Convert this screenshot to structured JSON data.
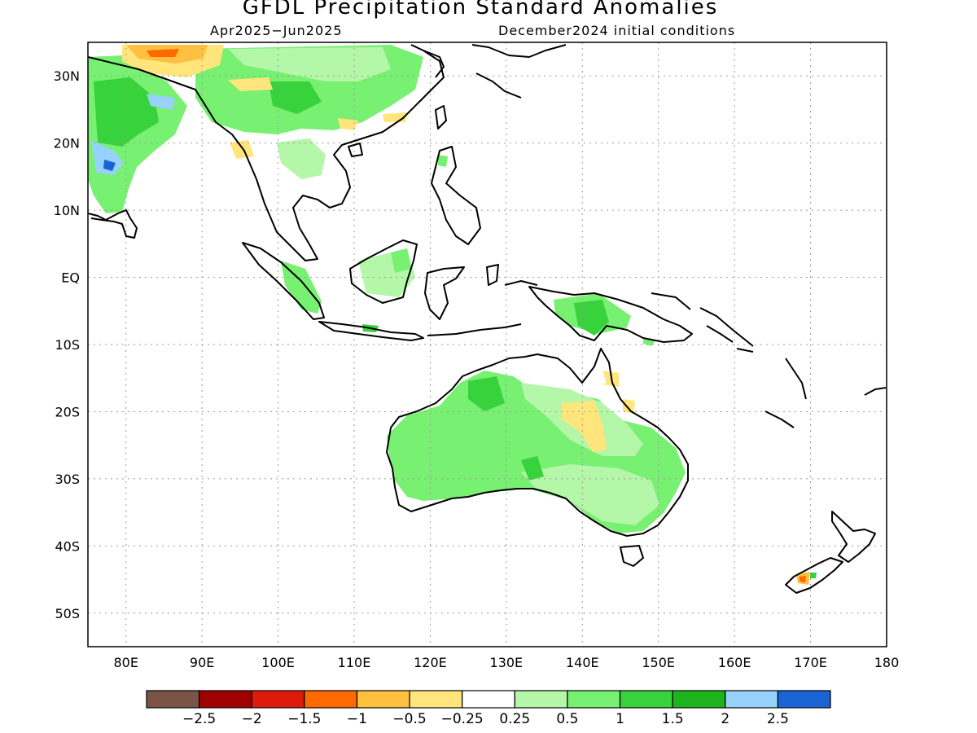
{
  "title": "GFDL Precipitation Standard Anomalies",
  "period": "Apr2025−Jun2025",
  "initial_conditions": "December2024 initial conditions",
  "map": {
    "lat_labels": [
      "30N",
      "20N",
      "10N",
      "EQ",
      "10S",
      "20S",
      "30S",
      "40S",
      "50S"
    ],
    "lon_labels": [
      "80E",
      "90E",
      "100E",
      "110E",
      "120E",
      "130E",
      "140E",
      "150E",
      "160E",
      "170E",
      "180"
    ],
    "lat_range": [
      -55,
      35
    ],
    "lon_range": [
      75,
      180
    ],
    "grid": true
  },
  "colorbar": {
    "colors": [
      "#7a5446",
      "#a00000",
      "#dd1a0c",
      "#ff6a00",
      "#ffbf3f",
      "#ffe57c",
      "#ffffff",
      "#b4f7a8",
      "#78f072",
      "#37d23c",
      "#1eb41e",
      "#96d2fa",
      "#1964d2"
    ],
    "labels": [
      "−2.5",
      "−2",
      "−1.5",
      "−1",
      "−0.5",
      "−0.25",
      "0.25",
      "0.5",
      "1",
      "1.5",
      "2",
      "2.5"
    ]
  },
  "colors": {
    "wet_light": "#b4f7a8",
    "wet": "#78f072",
    "wet_strong": "#37d23c",
    "wet_very_strong": "#1eb41e",
    "dry_light": "#ffe57c",
    "dry": "#ffbf3f",
    "dry_strong": "#ff6a00"
  }
}
